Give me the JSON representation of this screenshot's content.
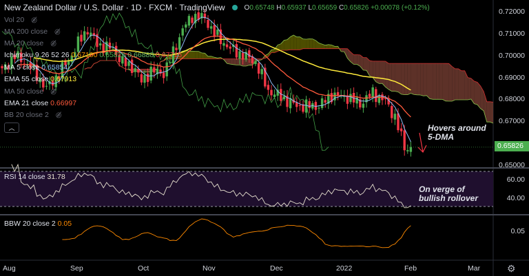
{
  "header": {
    "title": "New Zealand Dollar / U.S. Dollar · 1D · FXCM · TradingView",
    "ohlc": {
      "o": "0.65748",
      "h": "0.65937",
      "l": "0.65659",
      "c": "0.65826",
      "chg": "+0.00078 (+0.12%)"
    }
  },
  "legend": [
    {
      "label": "Vol 20",
      "value": "",
      "hidden": true
    },
    {
      "label": "MA 200 close",
      "value": "",
      "hidden": true
    },
    {
      "label": "MA 20 close",
      "value": "",
      "hidden": true
    },
    {
      "label": "Ichimoku 9 26 52 26",
      "values": [
        "0.67100",
        "0.65826",
        "0.66888",
        "0.67715"
      ],
      "hidden": false
    },
    {
      "label": "MA 5 close",
      "value": "0.65854",
      "hidden": false
    },
    {
      "label": "EMA 55 close",
      "value": "0.67913",
      "hidden": false
    },
    {
      "label": "MA 50 close",
      "value": "",
      "hidden": true
    },
    {
      "label": "EMA 21 close",
      "value": "0.66997",
      "hidden": false
    },
    {
      "label": "BB 20 close 2",
      "value": "",
      "hidden": true
    }
  ],
  "rsi": {
    "label": "RSI 14 close",
    "value": "31.78",
    "ticks": [
      "60.00",
      "40.00"
    ]
  },
  "bbw": {
    "label": "BBW 20 close 2",
    "value": "0.05",
    "ticks": [
      "0.05"
    ]
  },
  "price_axis": [
    "0.72000",
    "0.71000",
    "0.70000",
    "0.69000",
    "0.68000",
    "0.67000",
    "0.65000"
  ],
  "last_price": "0.65826",
  "time_axis": [
    "Aug",
    "Sep",
    "Oct",
    "Nov",
    "Dec",
    "2022",
    "Feb",
    "Mar"
  ],
  "annotations": {
    "a1": "Hovers around",
    "a2": "5-DMA",
    "b1": "On verge of",
    "b2": "bullish rollover"
  },
  "colors": {
    "up": "#4caf50",
    "down": "#f23645",
    "ma5": "#90bff9",
    "ema21": "#ff5a3c",
    "ema55": "#ffeb3b",
    "cloud_bear": "#6d3a2f",
    "cloud_bull": "#5a5a00",
    "chikou": "#43a047",
    "rsi": "#e8e2d0",
    "bbw": "#ff8a00"
  },
  "chart_data": {
    "type": "candlestick",
    "symbol": "NZDUSD",
    "interval": "1D",
    "ylim": [
      0.648,
      0.723
    ],
    "close_keypoints": [
      [
        0,
        0.693
      ],
      [
        4,
        0.7
      ],
      [
        9,
        0.695
      ],
      [
        14,
        0.685
      ],
      [
        17,
        0.69
      ],
      [
        21,
        0.698
      ],
      [
        25,
        0.708
      ],
      [
        27,
        0.712
      ],
      [
        30,
        0.705
      ],
      [
        35,
        0.703
      ],
      [
        38,
        0.697
      ],
      [
        42,
        0.694
      ],
      [
        44,
        0.688
      ],
      [
        47,
        0.693
      ],
      [
        51,
        0.692
      ],
      [
        53,
        0.698
      ],
      [
        57,
        0.712
      ],
      [
        60,
        0.718
      ],
      [
        64,
        0.717
      ],
      [
        67,
        0.71
      ],
      [
        72,
        0.703
      ],
      [
        75,
        0.701
      ],
      [
        80,
        0.697
      ],
      [
        84,
        0.684
      ],
      [
        88,
        0.681
      ],
      [
        93,
        0.677
      ],
      [
        100,
        0.677
      ],
      [
        104,
        0.682
      ],
      [
        109,
        0.681
      ],
      [
        113,
        0.678
      ],
      [
        117,
        0.683
      ],
      [
        121,
        0.679
      ],
      [
        124,
        0.672
      ],
      [
        127,
        0.658
      ],
      [
        129,
        0.658
      ]
    ],
    "bars": 130
  }
}
